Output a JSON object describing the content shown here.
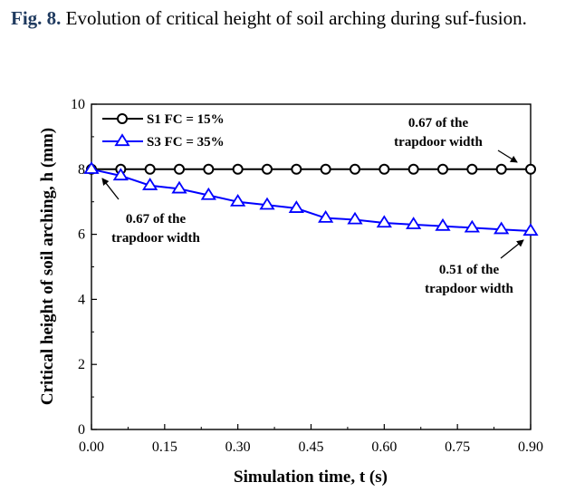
{
  "caption": {
    "label": "Fig. 8.",
    "text": " Evolution of critical height of soil arching during suf-fusion."
  },
  "chart_data": {
    "type": "line",
    "title": "",
    "xlabel": "Simulation time, t (s)",
    "ylabel": "Critical height of soil arching, h (mm)",
    "xlim": [
      0.0,
      0.9
    ],
    "ylim": [
      0,
      10
    ],
    "xticks": [
      "0.00",
      "0.15",
      "0.30",
      "0.45",
      "0.60",
      "0.75",
      "0.90"
    ],
    "yticks": [
      "0",
      "2",
      "4",
      "6",
      "8",
      "10"
    ],
    "grid": false,
    "legend_position": "top-left",
    "series": [
      {
        "name": "S1 FC = 15%",
        "marker": "circle",
        "color": "#000000",
        "x": [
          0.0,
          0.06,
          0.12,
          0.18,
          0.24,
          0.3,
          0.36,
          0.42,
          0.48,
          0.54,
          0.6,
          0.66,
          0.72,
          0.78,
          0.84,
          0.9
        ],
        "y": [
          8.0,
          8.0,
          8.0,
          8.0,
          8.0,
          8.0,
          8.0,
          8.0,
          8.0,
          8.0,
          8.0,
          8.0,
          8.0,
          8.0,
          8.0,
          8.0
        ]
      },
      {
        "name": "S3 FC = 35%",
        "marker": "triangle",
        "color": "#0000ff",
        "x": [
          0.0,
          0.06,
          0.12,
          0.18,
          0.24,
          0.3,
          0.36,
          0.42,
          0.48,
          0.54,
          0.6,
          0.66,
          0.72,
          0.78,
          0.84,
          0.9
        ],
        "y": [
          8.0,
          7.8,
          7.5,
          7.4,
          7.2,
          7.0,
          6.9,
          6.8,
          6.5,
          6.45,
          6.35,
          6.3,
          6.25,
          6.2,
          6.15,
          6.1
        ]
      }
    ],
    "annotations": [
      {
        "lines": [
          "0.67 of the",
          "trapdoor width"
        ],
        "target_x": 0.9,
        "target_y": 8.0
      },
      {
        "lines": [
          "0.67 of the",
          "trapdoor width"
        ],
        "target_x": 0.0,
        "target_y": 8.0
      },
      {
        "lines": [
          "0.51 of the",
          "trapdoor width"
        ],
        "target_x": 0.9,
        "target_y": 6.1
      }
    ]
  }
}
